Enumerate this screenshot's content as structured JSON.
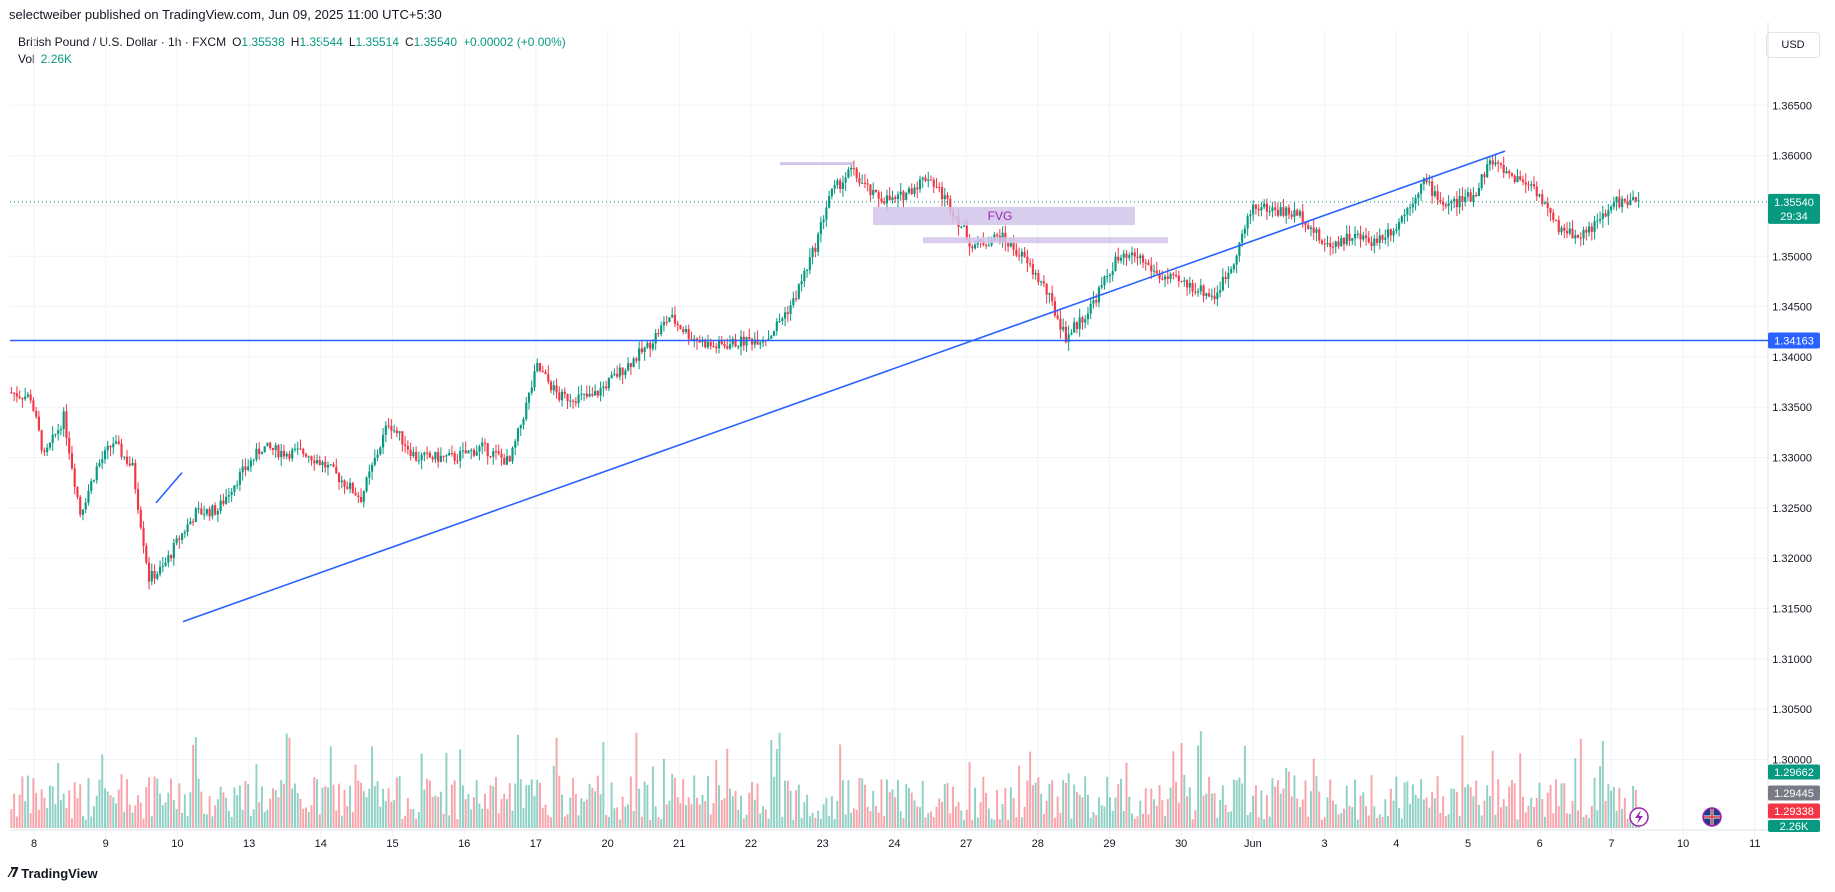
{
  "header": {
    "publisher_line": "selectweiber published on TradingView.com, Jun 09, 2025 11:00 UTC+5:30"
  },
  "legend": {
    "symbol": "British Pound / U.S. Dollar · 1h · FXCM",
    "o_label": "O",
    "o_value": "1.35538",
    "h_label": "H",
    "h_value": "1.35544",
    "l_label": "L",
    "l_value": "1.35514",
    "c_label": "C",
    "c_value": "1.35540",
    "change": "+0.00002 (+0.00%)",
    "vol_label": "Vol",
    "vol_value": "2.26K"
  },
  "currency_button": "USD",
  "footer": {
    "brand": "TradingView"
  },
  "colors": {
    "up": "#089981",
    "down": "#f23645",
    "trendline": "#2962ff",
    "fvg": "#d1c4e9",
    "grid": "#f0f3fa"
  },
  "icons": [
    "flash-icon",
    "uk-flag-icon"
  ],
  "chart_data": {
    "type": "candlestick",
    "symbol": "GBPUSD",
    "timeframe": "1h",
    "y_ticks": [
      "1.36500",
      "1.36000",
      "1.35500",
      "1.35000",
      "1.34500",
      "1.34000",
      "1.33500",
      "1.33000",
      "1.32500",
      "1.32000",
      "1.31500",
      "1.31000",
      "1.30500",
      "1.30000"
    ],
    "y_tick_values": [
      1.365,
      1.36,
      1.355,
      1.35,
      1.345,
      1.34,
      1.335,
      1.33,
      1.325,
      1.32,
      1.315,
      1.31,
      1.305,
      1.3
    ],
    "x_ticks": [
      "8",
      "9",
      "10",
      "13",
      "14",
      "15",
      "16",
      "17",
      "20",
      "21",
      "22",
      "23",
      "24",
      "27",
      "28",
      "29",
      "30",
      "Jun",
      "3",
      "4",
      "5",
      "6",
      "7",
      "10",
      "11"
    ],
    "ylim": [
      1.292,
      1.3695
    ],
    "price_labels": {
      "last": {
        "value": "1.35540",
        "countdown": "29:34",
        "price": 1.3554
      },
      "horizontal_line": {
        "value": "1.34163",
        "price": 1.34163
      },
      "side_1": "1.29662",
      "side_2": "1.29445",
      "side_3": "1.29338",
      "side_4": "2.26K"
    },
    "annotations": {
      "fvg_label": "FVG"
    },
    "path_points": [
      [
        0,
        1.3365
      ],
      [
        8,
        1.336
      ],
      [
        13,
        1.33
      ],
      [
        20,
        1.334
      ],
      [
        26,
        1.3245
      ],
      [
        32,
        1.329
      ],
      [
        38,
        1.3315
      ],
      [
        45,
        1.329
      ],
      [
        51,
        1.318
      ],
      [
        56,
        1.319
      ],
      [
        62,
        1.322
      ],
      [
        68,
        1.3245
      ],
      [
        76,
        1.3248
      ],
      [
        82,
        1.3275
      ],
      [
        92,
        1.331
      ],
      [
        100,
        1.3305
      ],
      [
        108,
        1.3305
      ],
      [
        116,
        1.329
      ],
      [
        128,
        1.326
      ],
      [
        138,
        1.3335
      ],
      [
        148,
        1.33
      ],
      [
        162,
        1.33
      ],
      [
        172,
        1.331
      ],
      [
        182,
        1.3295
      ],
      [
        192,
        1.339
      ],
      [
        200,
        1.336
      ],
      [
        212,
        1.336
      ],
      [
        222,
        1.3385
      ],
      [
        232,
        1.341
      ],
      [
        240,
        1.344
      ],
      [
        248,
        1.342
      ],
      [
        256,
        1.341
      ],
      [
        266,
        1.3415
      ],
      [
        276,
        1.342
      ],
      [
        285,
        1.3455
      ],
      [
        293,
        1.351
      ],
      [
        298,
        1.356
      ],
      [
        306,
        1.3585
      ],
      [
        314,
        1.356
      ],
      [
        322,
        1.3555
      ],
      [
        334,
        1.358
      ],
      [
        342,
        1.355
      ],
      [
        350,
        1.351
      ],
      [
        360,
        1.352
      ],
      [
        368,
        1.35
      ],
      [
        376,
        1.347
      ],
      [
        384,
        1.342
      ],
      [
        392,
        1.3445
      ],
      [
        402,
        1.3495
      ],
      [
        410,
        1.35
      ],
      [
        418,
        1.348
      ],
      [
        430,
        1.347
      ],
      [
        438,
        1.346
      ],
      [
        444,
        1.349
      ],
      [
        452,
        1.355
      ],
      [
        462,
        1.3545
      ],
      [
        470,
        1.354
      ],
      [
        478,
        1.351
      ],
      [
        488,
        1.352
      ],
      [
        496,
        1.3515
      ],
      [
        504,
        1.353
      ],
      [
        514,
        1.3575
      ],
      [
        522,
        1.355
      ],
      [
        532,
        1.356
      ],
      [
        538,
        1.3595
      ],
      [
        546,
        1.358
      ],
      [
        554,
        1.357
      ],
      [
        562,
        1.353
      ],
      [
        570,
        1.352
      ],
      [
        578,
        1.3535
      ],
      [
        584,
        1.3555
      ],
      [
        588,
        1.3553
      ],
      [
        590,
        1.3554
      ]
    ],
    "total_bars": 592,
    "trendlines": [
      {
        "x1": 183,
        "y1": 1.3137,
        "x2": 1505,
        "y2": 1.36045
      },
      {
        "x1": 156,
        "y1": 1.3255,
        "x2": 182,
        "y2": 1.3285
      }
    ],
    "fvg_zones": [
      {
        "from": 873,
        "to": 1135,
        "y_top": 1.354,
        "y_bottom": 1.353
      },
      {
        "from": 923,
        "to": 1168,
        "y_top": 1.351,
        "y_bottom": 1.3505
      }
    ],
    "resistance_segment": {
      "from": 780,
      "to": 853,
      "price": 1.3592
    }
  }
}
